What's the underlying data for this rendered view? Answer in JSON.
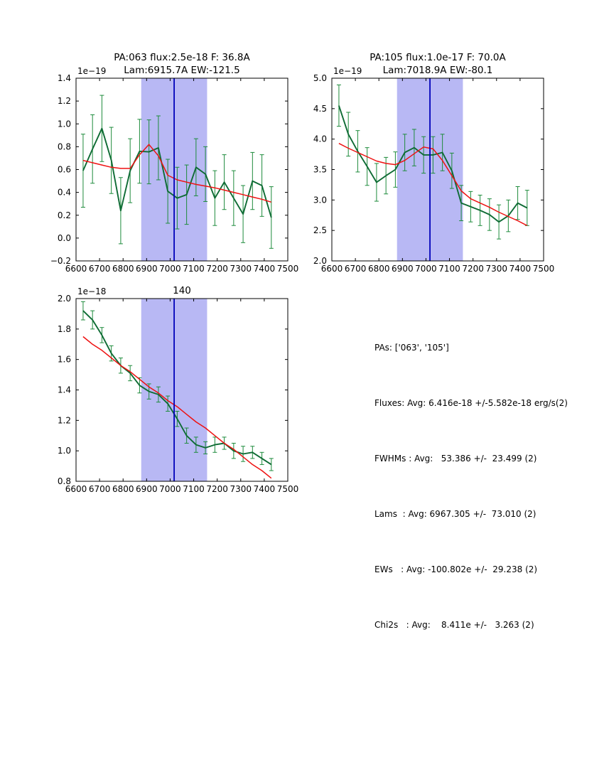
{
  "figure": {
    "background": "#ffffff"
  },
  "colors": {
    "spectrum_line": "#0e6b34",
    "error_bar": "#1e8b3c",
    "fit_line": "#ee1111",
    "band_fill": "#b8b8f4",
    "center_line": "#0000bb",
    "axis": "#000000",
    "text": "#000000"
  },
  "chart_data": [
    {
      "type": "line",
      "name": "pa063",
      "title_lines": [
        "PA:063 flux:2.5e-18 F: 36.8A",
        "Lam:6915.7A EW:-121.5"
      ],
      "offset_label": "1e−19",
      "xlim": [
        6600,
        7500
      ],
      "ylim": [
        -0.2,
        1.4
      ],
      "xticks": [
        6600,
        6700,
        6800,
        6900,
        7000,
        7100,
        7200,
        7300,
        7400,
        7500
      ],
      "xtick_labels": [
        "6600",
        "6700",
        "6800",
        "6900",
        "7000",
        "7100",
        "7200",
        "7300",
        "7400",
        "7500"
      ],
      "yticks": [
        -0.2,
        0.0,
        0.2,
        0.4,
        0.6,
        0.8,
        1.0,
        1.2,
        1.4
      ],
      "ytick_labels": [
        "−0.2",
        "0.0",
        "0.2",
        "0.4",
        "0.6",
        "0.8",
        "1.0",
        "1.2",
        "1.4"
      ],
      "grid": false,
      "legend": null,
      "shaded_band": {
        "x0": 6877,
        "x1": 7157
      },
      "vline_x": 7017,
      "x": [
        6630,
        6670,
        6710,
        6750,
        6790,
        6830,
        6870,
        6910,
        6950,
        6990,
        7030,
        7070,
        7110,
        7150,
        7190,
        7230,
        7270,
        7310,
        7350,
        7390,
        7430
      ],
      "series": [
        {
          "name": "spectrum",
          "y": [
            0.59,
            0.78,
            0.96,
            0.68,
            0.24,
            0.59,
            0.76,
            0.755,
            0.79,
            0.41,
            0.35,
            0.38,
            0.62,
            0.56,
            0.35,
            0.49,
            0.35,
            0.21,
            0.5,
            0.46,
            0.18
          ],
          "yerr": [
            0.32,
            0.3,
            0.29,
            0.29,
            0.29,
            0.28,
            0.28,
            0.28,
            0.28,
            0.28,
            0.27,
            0.26,
            0.25,
            0.24,
            0.24,
            0.24,
            0.24,
            0.25,
            0.25,
            0.27,
            0.27
          ]
        },
        {
          "name": "fit",
          "y": [
            0.68,
            0.66,
            0.64,
            0.62,
            0.61,
            0.61,
            0.73,
            0.82,
            0.72,
            0.55,
            0.51,
            0.49,
            0.47,
            0.455,
            0.44,
            0.42,
            0.4,
            0.38,
            0.36,
            0.34,
            0.315
          ]
        }
      ]
    },
    {
      "type": "line",
      "name": "pa105",
      "title_lines": [
        "PA:105 flux:1.0e-17 F: 70.0A",
        "Lam:7018.9A EW:-80.1"
      ],
      "offset_label": "1e−19",
      "xlim": [
        6600,
        7500
      ],
      "ylim": [
        2.0,
        5.0
      ],
      "xticks": [
        6600,
        6700,
        6800,
        6900,
        7000,
        7100,
        7200,
        7300,
        7400,
        7500
      ],
      "xtick_labels": [
        "6600",
        "6700",
        "6800",
        "6900",
        "7000",
        "7100",
        "7200",
        "7300",
        "7400",
        "7500"
      ],
      "yticks": [
        2.0,
        2.5,
        3.0,
        3.5,
        4.0,
        4.5,
        5.0
      ],
      "ytick_labels": [
        "2.0",
        "2.5",
        "3.0",
        "3.5",
        "4.0",
        "4.5",
        "5.0"
      ],
      "grid": false,
      "legend": null,
      "shaded_band": {
        "x0": 6877,
        "x1": 7157
      },
      "vline_x": 7017,
      "x": [
        6630,
        6670,
        6710,
        6750,
        6790,
        6830,
        6870,
        6910,
        6950,
        6990,
        7030,
        7070,
        7110,
        7150,
        7190,
        7230,
        7270,
        7310,
        7350,
        7390,
        7430
      ],
      "series": [
        {
          "name": "spectrum",
          "y": [
            4.55,
            4.08,
            3.8,
            3.55,
            3.29,
            3.4,
            3.5,
            3.78,
            3.86,
            3.74,
            3.74,
            3.78,
            3.48,
            2.95,
            2.89,
            2.83,
            2.76,
            2.64,
            2.74,
            2.95,
            2.87
          ],
          "yerr": [
            0.34,
            0.36,
            0.34,
            0.31,
            0.31,
            0.3,
            0.29,
            0.3,
            0.3,
            0.3,
            0.3,
            0.3,
            0.29,
            0.29,
            0.25,
            0.25,
            0.26,
            0.28,
            0.26,
            0.27,
            0.29
          ]
        },
        {
          "name": "fit",
          "y": [
            3.93,
            3.85,
            3.78,
            3.71,
            3.64,
            3.6,
            3.58,
            3.65,
            3.76,
            3.87,
            3.84,
            3.65,
            3.4,
            3.15,
            3.02,
            2.95,
            2.88,
            2.8,
            2.73,
            2.66,
            2.58
          ]
        }
      ]
    },
    {
      "type": "line",
      "name": "140",
      "title_lines": [
        "140"
      ],
      "offset_label": "1e−18",
      "xlim": [
        6600,
        7500
      ],
      "ylim": [
        0.8,
        2.0
      ],
      "xticks": [
        6600,
        6700,
        6800,
        6900,
        7000,
        7100,
        7200,
        7300,
        7400,
        7500
      ],
      "xtick_labels": [
        "6600",
        "6700",
        "6800",
        "6900",
        "7000",
        "7100",
        "7200",
        "7300",
        "7400",
        "7500"
      ],
      "yticks": [
        0.8,
        1.0,
        1.2,
        1.4,
        1.6,
        1.8,
        2.0
      ],
      "ytick_labels": [
        "0.8",
        "1.0",
        "1.2",
        "1.4",
        "1.6",
        "1.8",
        "2.0"
      ],
      "grid": false,
      "legend": null,
      "shaded_band": {
        "x0": 6877,
        "x1": 7157
      },
      "vline_x": 7017,
      "x": [
        6630,
        6670,
        6710,
        6750,
        6790,
        6830,
        6870,
        6910,
        6950,
        6990,
        7030,
        7070,
        7110,
        7150,
        7190,
        7230,
        7270,
        7310,
        7350,
        7390,
        7430
      ],
      "series": [
        {
          "name": "spectrum",
          "y": [
            1.92,
            1.86,
            1.76,
            1.64,
            1.56,
            1.51,
            1.43,
            1.39,
            1.37,
            1.31,
            1.21,
            1.1,
            1.04,
            1.02,
            1.04,
            1.05,
            1.0,
            0.98,
            0.99,
            0.95,
            0.91
          ],
          "yerr": [
            0.06,
            0.06,
            0.05,
            0.05,
            0.05,
            0.05,
            0.05,
            0.05,
            0.05,
            0.05,
            0.05,
            0.05,
            0.05,
            0.04,
            0.05,
            0.04,
            0.05,
            0.05,
            0.04,
            0.04,
            0.04
          ]
        },
        {
          "name": "fit",
          "y": [
            1.75,
            1.7,
            1.66,
            1.61,
            1.56,
            1.52,
            1.47,
            1.42,
            1.38,
            1.33,
            1.29,
            1.24,
            1.19,
            1.15,
            1.1,
            1.05,
            1.01,
            0.96,
            0.91,
            0.87,
            0.82
          ]
        }
      ]
    }
  ],
  "stats_panel": {
    "lines": [
      "PAs: ['063', '105']",
      "Fluxes: Avg: 6.416e-18 +/-5.582e-18 erg/s(2)",
      "FWHMs : Avg:   53.386 +/-  23.499 (2)",
      "Lams  : Avg: 6967.305 +/-  73.010 (2)",
      "EWs   : Avg: -100.802e +/-  29.238 (2)",
      "Chi2s   : Avg:    8.411e +/-   3.263 (2)"
    ]
  }
}
